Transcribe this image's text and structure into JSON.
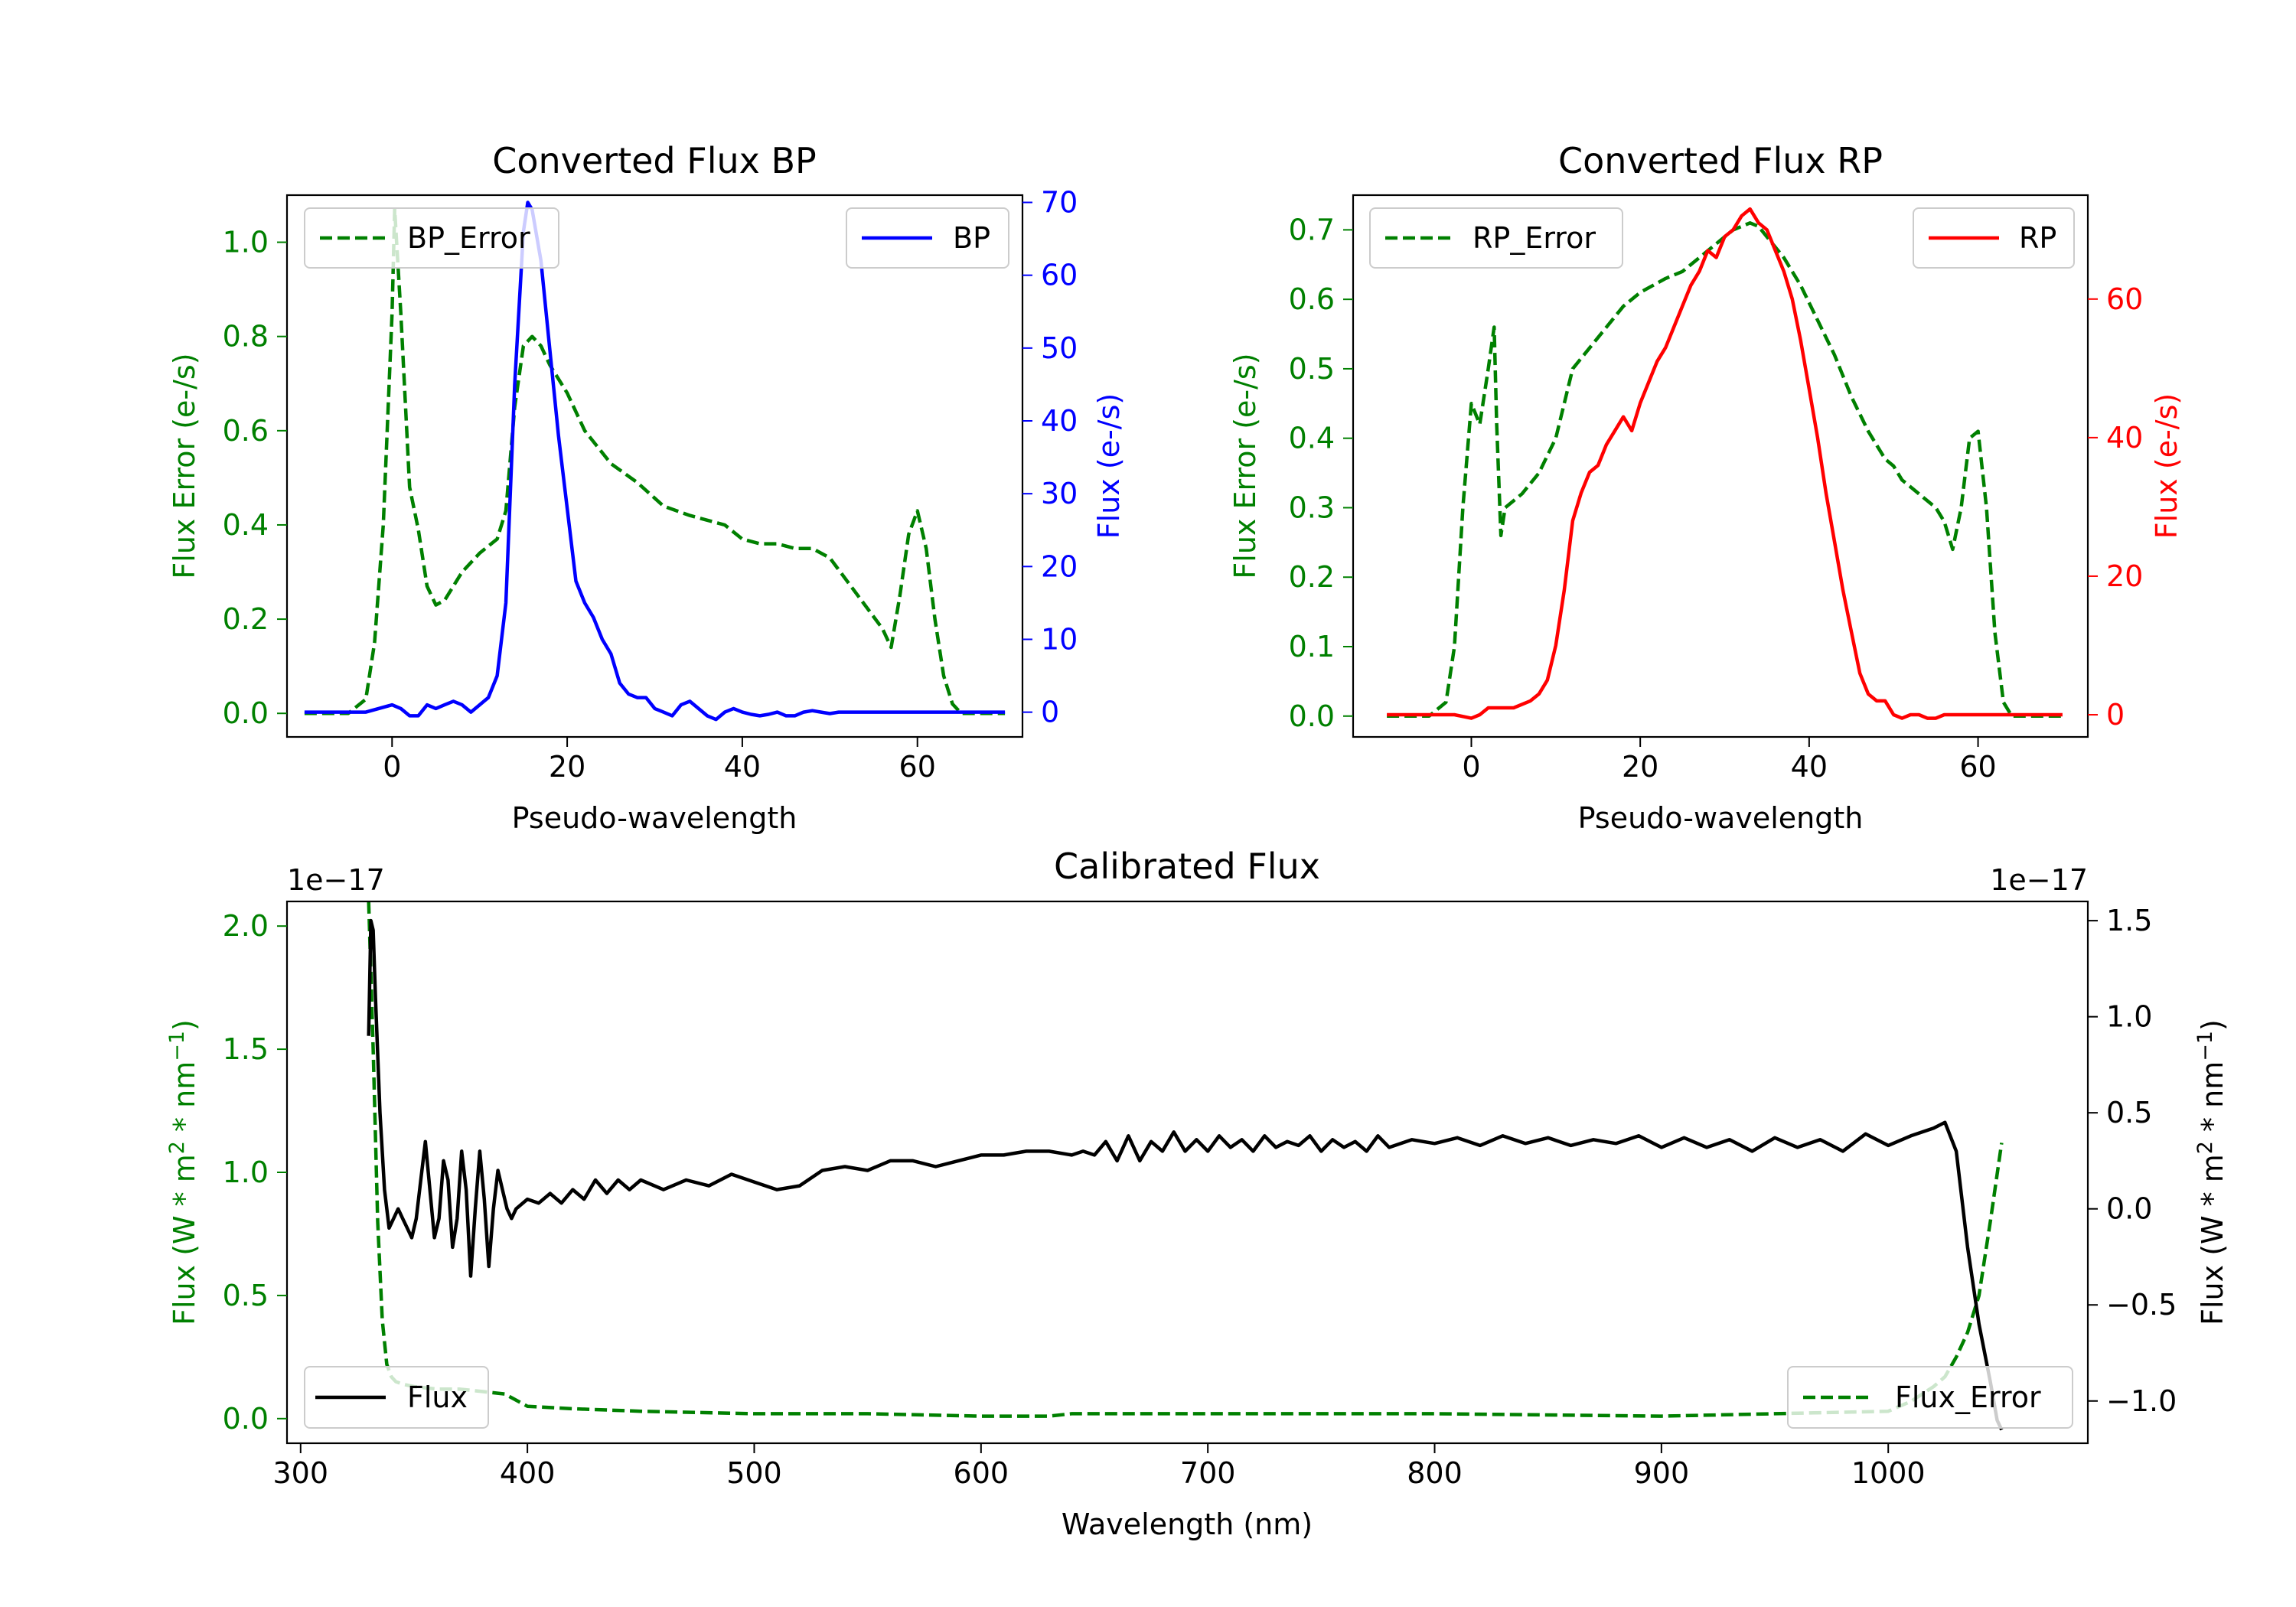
{
  "colors": {
    "error": "#008000",
    "bp": "#0000ff",
    "rp": "#ff0000",
    "flux": "#000000",
    "axis": "#000000"
  },
  "chart_data": [
    {
      "id": "bp",
      "type": "line",
      "title": "Converted Flux BP",
      "xlabel": "Pseudo-wavelength",
      "ylabel_left": "Flux Error (e-/s)",
      "ylabel_right": "Flux (e-/s)",
      "xlim": [
        -12,
        72
      ],
      "ylim_left": [
        -0.05,
        1.1
      ],
      "ylim_right": [
        -3.4,
        71
      ],
      "xticks": [
        0,
        20,
        40,
        60
      ],
      "xtick_labels": [
        "0",
        "20",
        "40",
        "60"
      ],
      "yticks_left": [
        0.0,
        0.2,
        0.4,
        0.6,
        0.8,
        1.0
      ],
      "ytick_labels_left": [
        "0.0",
        "0.2",
        "0.4",
        "0.6",
        "0.8",
        "1.0"
      ],
      "yticks_right": [
        0,
        10,
        20,
        30,
        40,
        50,
        60,
        70
      ],
      "ytick_labels_right": [
        "0",
        "10",
        "20",
        "30",
        "40",
        "50",
        "60",
        "70"
      ],
      "legend_left": {
        "label": "BP_Error",
        "position": "upper-left"
      },
      "legend_right": {
        "label": "BP",
        "position": "upper-right"
      },
      "series": [
        {
          "name": "BP_Error",
          "axis": "left",
          "style": "dashed",
          "color": "#008000",
          "x": [
            -10,
            -5,
            -3,
            -2,
            -1,
            0,
            0.3,
            1,
            2,
            3,
            4,
            5,
            6,
            8,
            10,
            12,
            13,
            14,
            15,
            16,
            17,
            18,
            20,
            22,
            25,
            28,
            31,
            34,
            36,
            38,
            40,
            42,
            44,
            46,
            48,
            50,
            52,
            54,
            56,
            57,
            58,
            59,
            60,
            61,
            62,
            63,
            64,
            65,
            70
          ],
          "y": [
            0,
            0,
            0.03,
            0.15,
            0.4,
            0.85,
            1.07,
            0.85,
            0.48,
            0.39,
            0.27,
            0.23,
            0.24,
            0.3,
            0.34,
            0.37,
            0.43,
            0.65,
            0.78,
            0.8,
            0.78,
            0.74,
            0.68,
            0.6,
            0.53,
            0.49,
            0.44,
            0.42,
            0.41,
            0.4,
            0.37,
            0.36,
            0.36,
            0.35,
            0.35,
            0.33,
            0.28,
            0.23,
            0.18,
            0.14,
            0.25,
            0.38,
            0.43,
            0.35,
            0.2,
            0.08,
            0.02,
            0,
            0
          ]
        },
        {
          "name": "BP",
          "axis": "right",
          "style": "solid",
          "color": "#0000ff",
          "x": [
            -10,
            -3,
            0,
            1,
            2,
            3,
            4,
            5,
            6,
            7,
            8,
            9,
            10,
            11,
            12,
            13,
            14,
            15,
            15.5,
            16,
            17,
            18,
            19,
            20,
            21,
            22,
            23,
            24,
            25,
            26,
            27,
            28,
            29,
            30,
            31,
            32,
            33,
            34,
            35,
            36,
            37,
            38,
            39,
            40,
            41,
            42,
            43,
            44,
            45,
            46,
            47,
            48,
            49,
            50,
            51,
            52,
            53,
            54,
            55,
            56,
            57,
            58,
            60,
            62,
            65,
            70
          ],
          "y": [
            0,
            0,
            1,
            0.5,
            -0.5,
            -0.5,
            1,
            0.5,
            1,
            1.5,
            1,
            0,
            1,
            2,
            5,
            15,
            45,
            66,
            70,
            69,
            62,
            50,
            38,
            28,
            18,
            15,
            13,
            10,
            8,
            4,
            2.5,
            2,
            2,
            0.5,
            0,
            -0.5,
            1,
            1.5,
            0.5,
            -0.5,
            -1,
            0,
            0.5,
            0,
            -0.3,
            -0.5,
            -0.3,
            0,
            -0.5,
            -0.5,
            0,
            0.2,
            0,
            -0.2,
            0,
            0,
            0,
            0,
            0,
            0,
            0,
            0,
            0,
            0,
            0,
            0
          ]
        }
      ]
    },
    {
      "id": "rp",
      "type": "line",
      "title": "Converted Flux RP",
      "xlabel": "Pseudo-wavelength",
      "ylabel_left": "Flux Error (e-/s)",
      "ylabel_right": "Flux (e-/s)",
      "xlim": [
        -14,
        73
      ],
      "ylim_left": [
        -0.03,
        0.75
      ],
      "ylim_right": [
        -3.2,
        75
      ],
      "xticks": [
        0,
        20,
        40,
        60
      ],
      "xtick_labels": [
        "0",
        "20",
        "40",
        "60"
      ],
      "yticks_left": [
        0.0,
        0.1,
        0.2,
        0.3,
        0.4,
        0.5,
        0.6,
        0.7
      ],
      "ytick_labels_left": [
        "0.0",
        "0.1",
        "0.2",
        "0.3",
        "0.4",
        "0.5",
        "0.6",
        "0.7"
      ],
      "yticks_right": [
        0,
        20,
        40,
        60
      ],
      "ytick_labels_right": [
        "0",
        "20",
        "40",
        "60"
      ],
      "legend_left": {
        "label": "RP_Error",
        "position": "upper-left"
      },
      "legend_right": {
        "label": "RP",
        "position": "upper-right"
      },
      "series": [
        {
          "name": "RP_Error",
          "axis": "left",
          "style": "dashed",
          "color": "#008000",
          "x": [
            -10,
            -5,
            -3,
            -2,
            -1,
            0,
            1,
            2,
            2.7,
            3,
            3.5,
            4,
            5,
            6,
            8,
            10,
            12,
            14,
            16,
            18,
            20,
            23,
            25,
            27,
            29,
            31,
            33,
            34,
            35,
            37,
            39,
            41,
            43,
            45,
            47,
            49,
            50,
            51,
            52,
            54,
            55,
            56,
            57,
            58,
            59,
            60,
            61,
            62,
            63,
            64,
            70
          ],
          "y": [
            0,
            0,
            0.02,
            0.1,
            0.3,
            0.45,
            0.42,
            0.5,
            0.56,
            0.42,
            0.26,
            0.3,
            0.31,
            0.32,
            0.35,
            0.4,
            0.5,
            0.53,
            0.56,
            0.59,
            0.61,
            0.63,
            0.64,
            0.66,
            0.68,
            0.7,
            0.71,
            0.705,
            0.69,
            0.66,
            0.62,
            0.57,
            0.52,
            0.46,
            0.41,
            0.37,
            0.36,
            0.34,
            0.33,
            0.31,
            0.3,
            0.28,
            0.24,
            0.3,
            0.4,
            0.41,
            0.3,
            0.12,
            0.02,
            0,
            0
          ]
        },
        {
          "name": "RP",
          "axis": "right",
          "style": "solid",
          "color": "#ff0000",
          "x": [
            -10,
            -5,
            -2,
            0,
            1,
            2,
            3,
            5,
            7,
            8,
            9,
            10,
            11,
            12,
            13,
            14,
            15,
            16,
            17,
            18,
            19,
            20,
            21,
            22,
            23,
            24,
            25,
            26,
            27,
            28,
            29,
            30,
            31,
            32,
            33,
            34,
            35,
            36,
            37,
            38,
            39,
            40,
            41,
            42,
            43,
            44,
            45,
            46,
            47,
            48,
            49,
            50,
            51,
            52,
            53,
            54,
            55,
            56,
            57,
            58,
            59,
            60,
            62,
            65,
            70
          ],
          "y": [
            0,
            0,
            0,
            -0.5,
            0,
            1,
            1,
            1,
            2,
            3,
            5,
            10,
            18,
            28,
            32,
            35,
            36,
            39,
            41,
            43,
            41,
            45,
            48,
            51,
            53,
            56,
            59,
            62,
            64,
            67,
            66,
            69,
            70,
            72,
            73,
            71,
            70,
            67,
            64,
            60,
            54,
            47,
            40,
            32,
            25,
            18,
            12,
            6,
            3,
            2,
            2,
            0,
            -0.5,
            0,
            0,
            -0.5,
            -0.5,
            0,
            0,
            0,
            0,
            0,
            0,
            0,
            0
          ]
        }
      ]
    },
    {
      "id": "cal",
      "type": "line",
      "title": "Calibrated Flux",
      "xlabel": "Wavelength (nm)",
      "ylabel_left": "Flux (W * m$^2$ * nm$^{-1}$)",
      "ylabel_right": "Flux (W * m$^2$ * nm$^{-1}$)",
      "offset_left": "1e−17",
      "offset_right": "1e−17",
      "xlim": [
        294,
        1088
      ],
      "ylim_left": [
        -0.1,
        2.1
      ],
      "ylim_right": [
        -1.22,
        1.6
      ],
      "xticks": [
        300,
        400,
        500,
        600,
        700,
        800,
        900,
        1000
      ],
      "xtick_labels": [
        "300",
        "400",
        "500",
        "600",
        "700",
        "800",
        "900",
        "1000"
      ],
      "yticks_left": [
        0.0,
        0.5,
        1.0,
        1.5,
        2.0
      ],
      "ytick_labels_left": [
        "0.0",
        "0.5",
        "1.0",
        "1.5",
        "2.0"
      ],
      "yticks_right": [
        -1.0,
        -0.5,
        0.0,
        0.5,
        1.0,
        1.5
      ],
      "ytick_labels_right": [
        "−1.0",
        "−0.5",
        "0.0",
        "0.5",
        "1.0",
        "1.5"
      ],
      "legend_left": {
        "label": "Flux",
        "position": "lower-left"
      },
      "legend_right": {
        "label": "Flux_Error",
        "position": "lower-right"
      },
      "series": [
        {
          "name": "Flux_Error",
          "axis": "left",
          "style": "dashed",
          "color": "#008000",
          "x": [
            330,
            332,
            334,
            336,
            338,
            340,
            342,
            345,
            350,
            360,
            370,
            380,
            390,
            400,
            420,
            450,
            500,
            550,
            600,
            630,
            640,
            700,
            800,
            900,
            950,
            1000,
            1010,
            1020,
            1025,
            1030,
            1035,
            1040,
            1045,
            1050
          ],
          "y": [
            2.1,
            1.5,
            0.8,
            0.4,
            0.22,
            0.17,
            0.15,
            0.14,
            0.13,
            0.12,
            0.12,
            0.11,
            0.1,
            0.05,
            0.04,
            0.03,
            0.02,
            0.02,
            0.01,
            0.01,
            0.02,
            0.02,
            0.02,
            0.01,
            0.02,
            0.03,
            0.07,
            0.13,
            0.17,
            0.25,
            0.35,
            0.5,
            0.8,
            1.12
          ]
        },
        {
          "name": "Flux",
          "axis": "right",
          "style": "solid",
          "color": "#000000",
          "x": [
            330,
            331,
            332,
            333,
            335,
            337,
            339,
            341,
            343,
            345,
            347,
            349,
            351,
            353,
            355,
            357,
            359,
            361,
            363,
            365,
            367,
            369,
            371,
            373,
            375,
            377,
            379,
            381,
            383,
            385,
            387,
            389,
            391,
            393,
            395,
            400,
            405,
            410,
            415,
            420,
            425,
            430,
            435,
            440,
            445,
            450,
            460,
            470,
            480,
            490,
            500,
            510,
            520,
            530,
            540,
            550,
            560,
            570,
            580,
            590,
            600,
            610,
            620,
            630,
            640,
            645,
            650,
            655,
            660,
            665,
            670,
            675,
            680,
            685,
            690,
            695,
            700,
            705,
            710,
            715,
            720,
            725,
            730,
            735,
            740,
            745,
            750,
            755,
            760,
            765,
            770,
            775,
            780,
            790,
            800,
            810,
            820,
            830,
            840,
            850,
            860,
            870,
            880,
            890,
            900,
            910,
            920,
            930,
            940,
            950,
            960,
            970,
            980,
            990,
            1000,
            1010,
            1020,
            1025,
            1030,
            1035,
            1040,
            1045,
            1048,
            1050
          ],
          "y": [
            0.9,
            1.5,
            1.45,
            1.1,
            0.5,
            0.1,
            -0.1,
            -0.05,
            0.0,
            -0.05,
            -0.1,
            -0.15,
            -0.05,
            0.15,
            0.35,
            0.1,
            -0.15,
            -0.05,
            0.25,
            0.15,
            -0.2,
            -0.05,
            0.3,
            0.1,
            -0.35,
            0.0,
            0.3,
            0.05,
            -0.3,
            0.0,
            0.2,
            0.1,
            0.0,
            -0.05,
            0.0,
            0.05,
            0.03,
            0.08,
            0.03,
            0.1,
            0.05,
            0.15,
            0.08,
            0.15,
            0.1,
            0.15,
            0.1,
            0.15,
            0.12,
            0.18,
            0.14,
            0.1,
            0.12,
            0.2,
            0.22,
            0.2,
            0.25,
            0.25,
            0.22,
            0.25,
            0.28,
            0.28,
            0.3,
            0.3,
            0.28,
            0.3,
            0.28,
            0.35,
            0.25,
            0.38,
            0.25,
            0.35,
            0.3,
            0.4,
            0.3,
            0.36,
            0.3,
            0.38,
            0.32,
            0.36,
            0.3,
            0.38,
            0.32,
            0.35,
            0.33,
            0.38,
            0.3,
            0.36,
            0.32,
            0.35,
            0.3,
            0.38,
            0.32,
            0.36,
            0.34,
            0.37,
            0.33,
            0.38,
            0.34,
            0.37,
            0.33,
            0.36,
            0.34,
            0.38,
            0.32,
            0.37,
            0.32,
            0.36,
            0.3,
            0.37,
            0.32,
            0.36,
            0.3,
            0.39,
            0.33,
            0.38,
            0.42,
            0.45,
            0.3,
            -0.2,
            -0.6,
            -0.9,
            -1.1,
            -1.15
          ]
        }
      ]
    }
  ]
}
